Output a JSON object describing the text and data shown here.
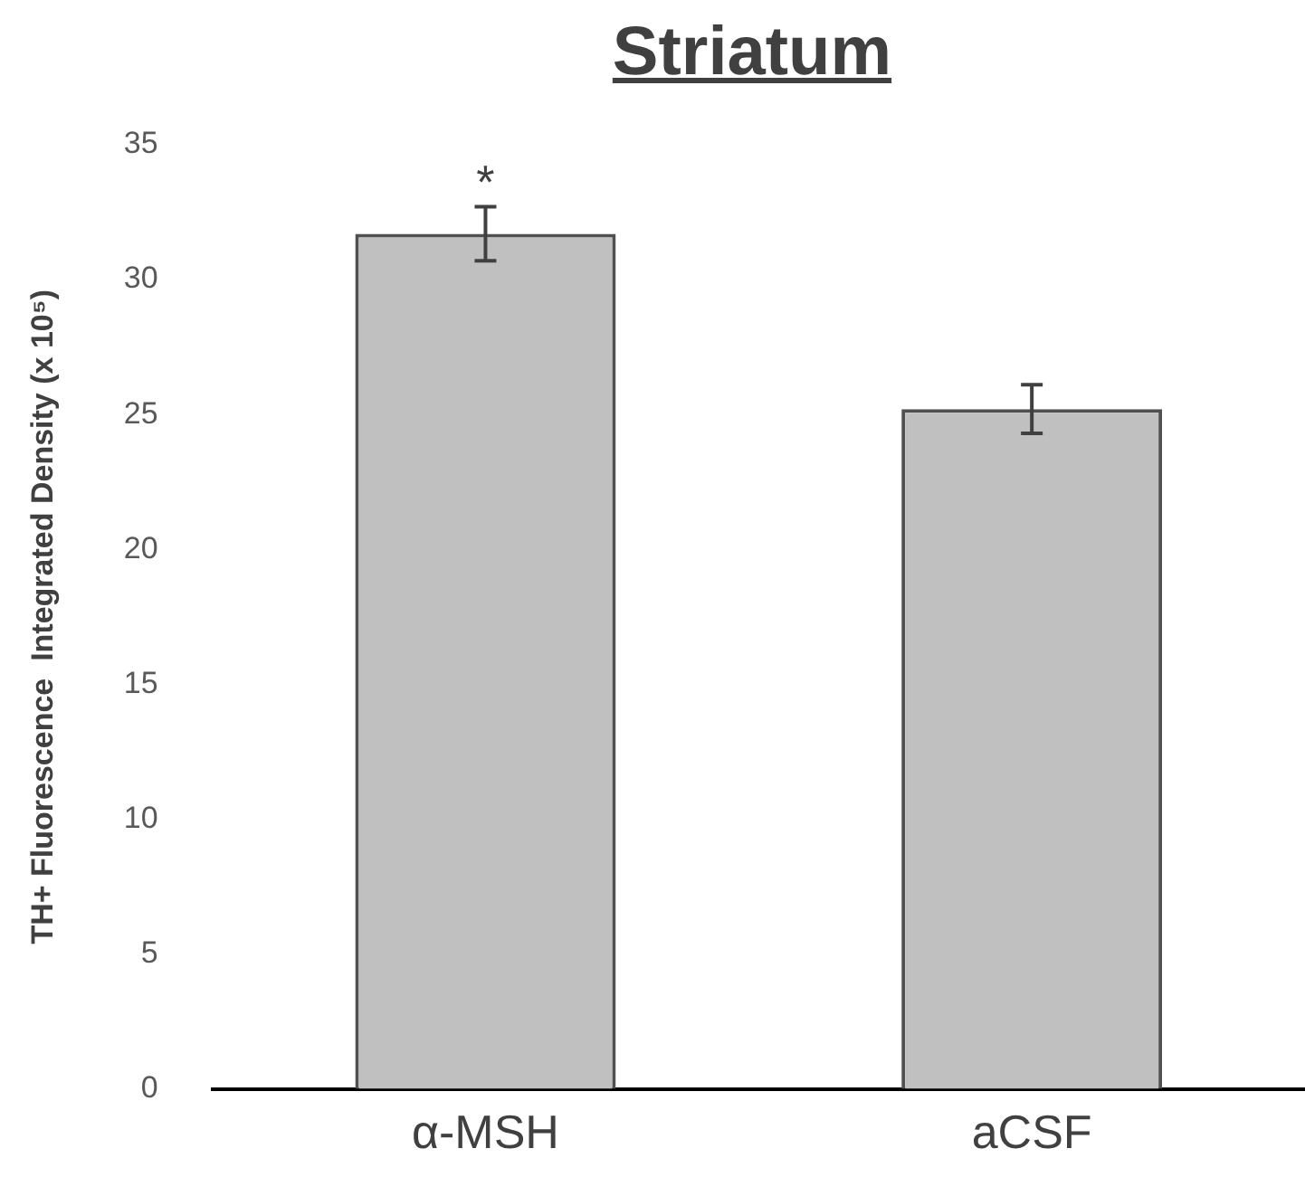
{
  "chart_data": {
    "type": "bar",
    "title": "Striatum",
    "ylabel": "TH+ Fluorescence  Integrated Density (x 10⁵)",
    "categories": [
      "α-MSH",
      "aCSF"
    ],
    "values": [
      31.7,
      25.2
    ],
    "errors": [
      1.0,
      0.9
    ],
    "color": "#c0c0c0",
    "ylim": [
      0,
      35
    ],
    "yticks": [
      0,
      5,
      10,
      15,
      20,
      25,
      30,
      35
    ],
    "grid": false,
    "legend": false,
    "annotations": [
      "*"
    ]
  }
}
